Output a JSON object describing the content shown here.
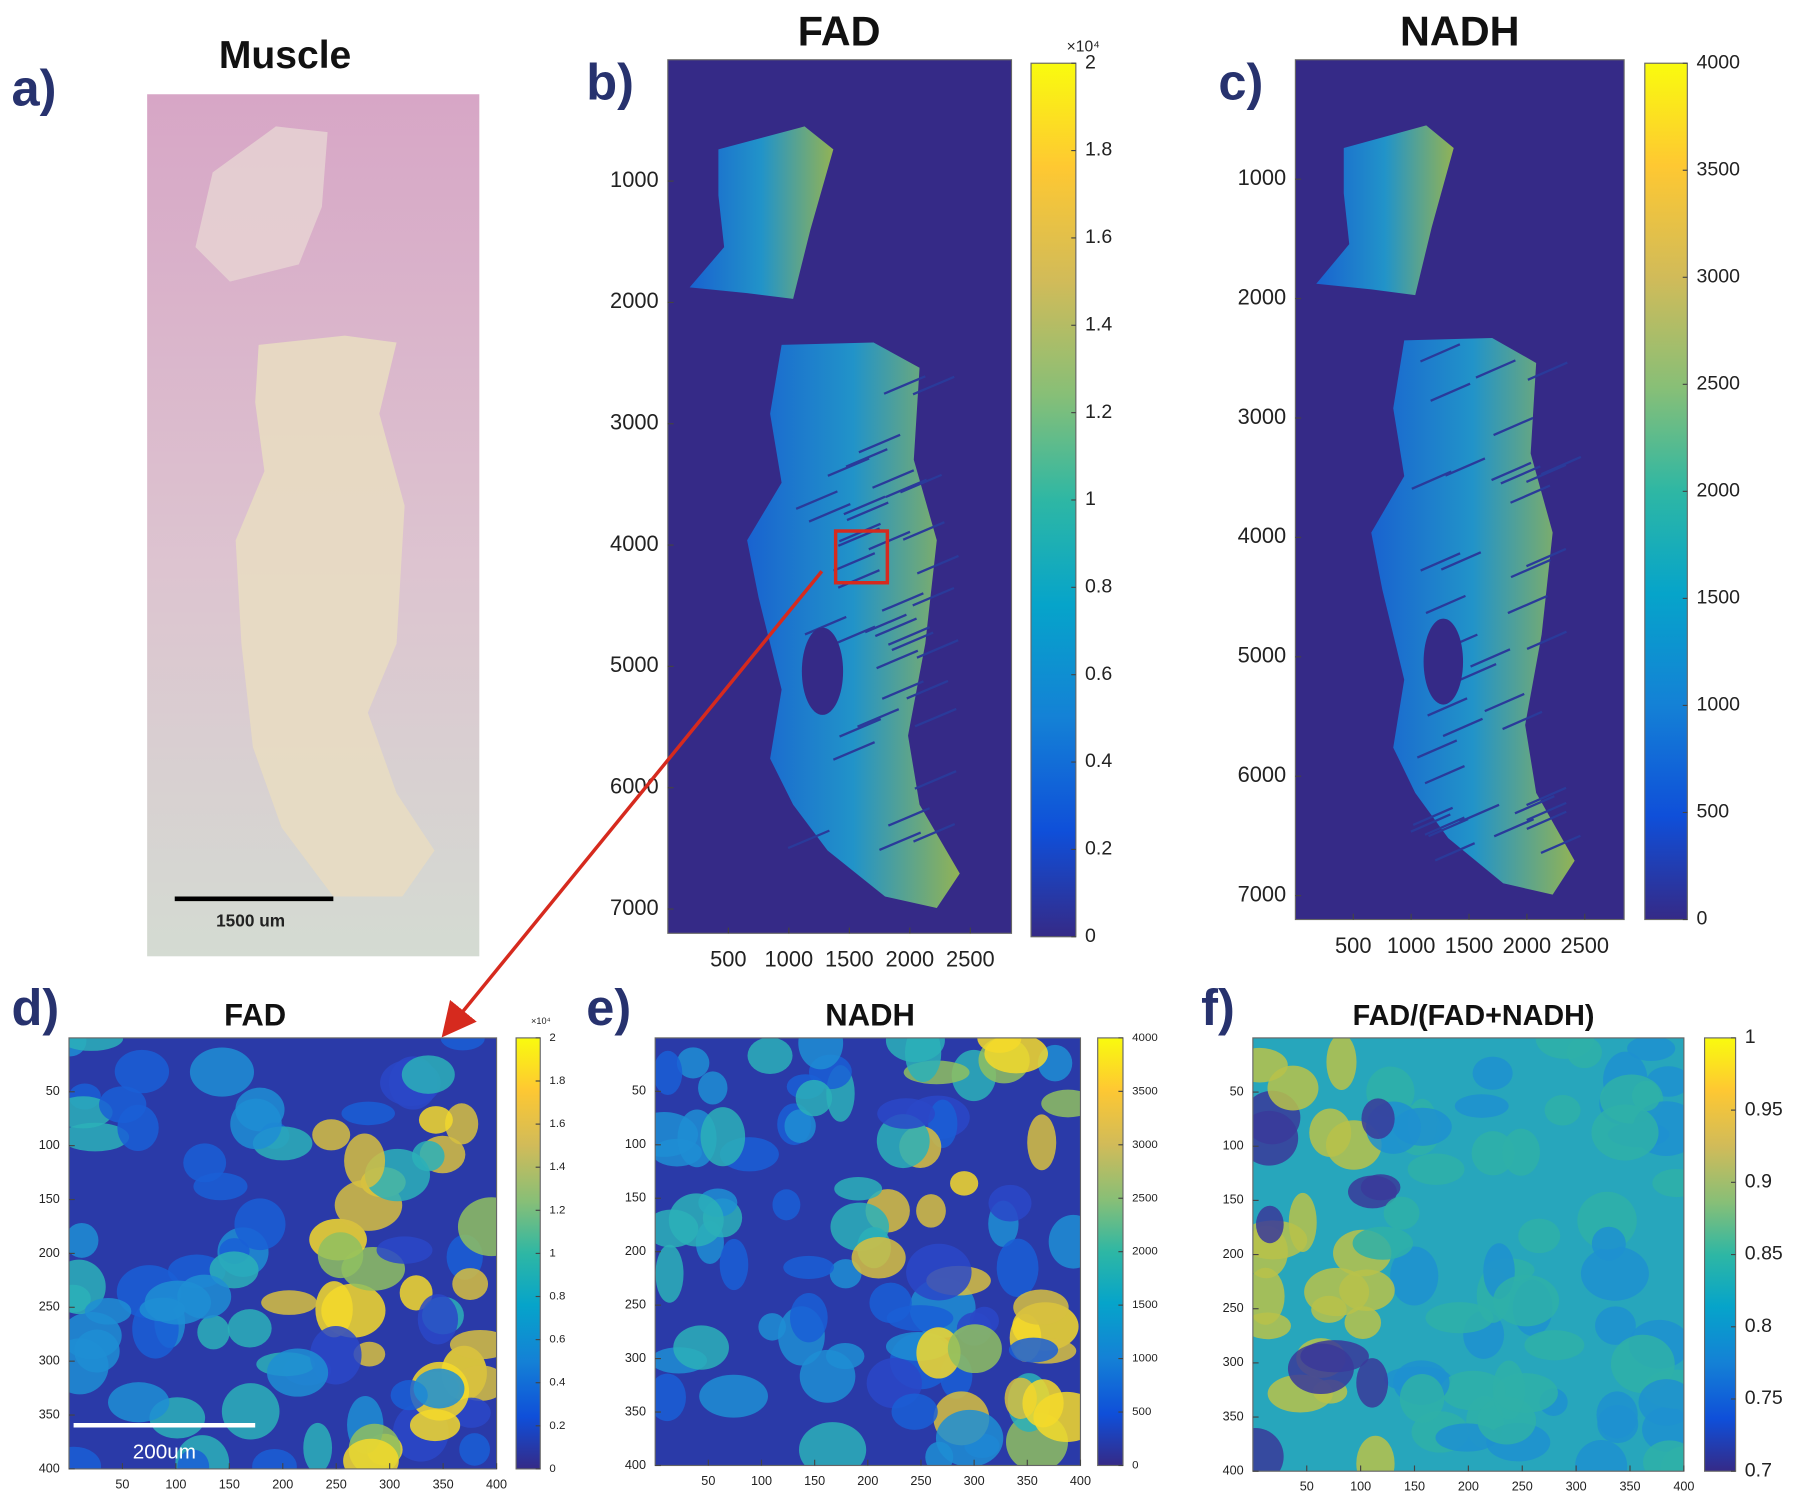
{
  "panels": [
    {
      "label": "a)",
      "title": "Muscle",
      "scale_bar": "1500 um"
    },
    {
      "label": "b)",
      "title": "FAD",
      "xlim": [
        0,
        2840
      ],
      "xticks": [
        500,
        1000,
        1500,
        2000,
        2500
      ],
      "ylim": [
        0,
        7200
      ],
      "yticks": [
        1000,
        2000,
        3000,
        4000,
        5000,
        6000,
        7000
      ],
      "colorbar": {
        "lim": [
          0,
          2
        ],
        "ticks": [
          0,
          0.2,
          0.4,
          0.6,
          0.8,
          1,
          1.2,
          1.4,
          1.6,
          1.8,
          2
        ],
        "exponent": "×10⁴"
      }
    },
    {
      "label": "c)",
      "title": "NADH",
      "xlim": [
        0,
        2840
      ],
      "xticks": [
        500,
        1000,
        1500,
        2000,
        2500
      ],
      "ylim": [
        0,
        7200
      ],
      "yticks": [
        1000,
        2000,
        3000,
        4000,
        5000,
        6000,
        7000
      ],
      "colorbar": {
        "lim": [
          0,
          4000
        ],
        "ticks": [
          0,
          500,
          1000,
          1500,
          2000,
          2500,
          3000,
          3500,
          4000
        ]
      }
    },
    {
      "label": "d)",
      "title": "FAD",
      "scale_bar": "200um",
      "xlim": [
        0,
        400
      ],
      "xticks": [
        50,
        100,
        150,
        200,
        250,
        300,
        350,
        400
      ],
      "ylim": [
        0,
        400
      ],
      "yticks": [
        50,
        100,
        150,
        200,
        250,
        300,
        350,
        400
      ],
      "colorbar": {
        "lim": [
          0,
          2
        ],
        "ticks": [
          0,
          0.2,
          0.4,
          0.6,
          0.8,
          1,
          1.2,
          1.4,
          1.6,
          1.8,
          2
        ],
        "exponent": "×10⁴"
      }
    },
    {
      "label": "e)",
      "title": "NADH",
      "xlim": [
        0,
        400
      ],
      "xticks": [
        50,
        100,
        150,
        200,
        250,
        300,
        350,
        400
      ],
      "ylim": [
        0,
        400
      ],
      "yticks": [
        50,
        100,
        150,
        200,
        250,
        300,
        350,
        400
      ],
      "colorbar": {
        "lim": [
          0,
          4000
        ],
        "ticks": [
          0,
          500,
          1000,
          1500,
          2000,
          2500,
          3000,
          3500,
          4000
        ]
      }
    },
    {
      "label": "f)",
      "title": "FAD/(FAD+NADH)",
      "xlim": [
        0,
        400
      ],
      "xticks": [
        50,
        100,
        150,
        200,
        250,
        300,
        350,
        400
      ],
      "ylim": [
        0,
        400
      ],
      "yticks": [
        50,
        100,
        150,
        200,
        250,
        300,
        350,
        400
      ],
      "colorbar": {
        "lim": [
          0.7,
          1
        ],
        "ticks": [
          0.7,
          0.75,
          0.8,
          0.85,
          0.9,
          0.95,
          1
        ]
      }
    }
  ]
}
